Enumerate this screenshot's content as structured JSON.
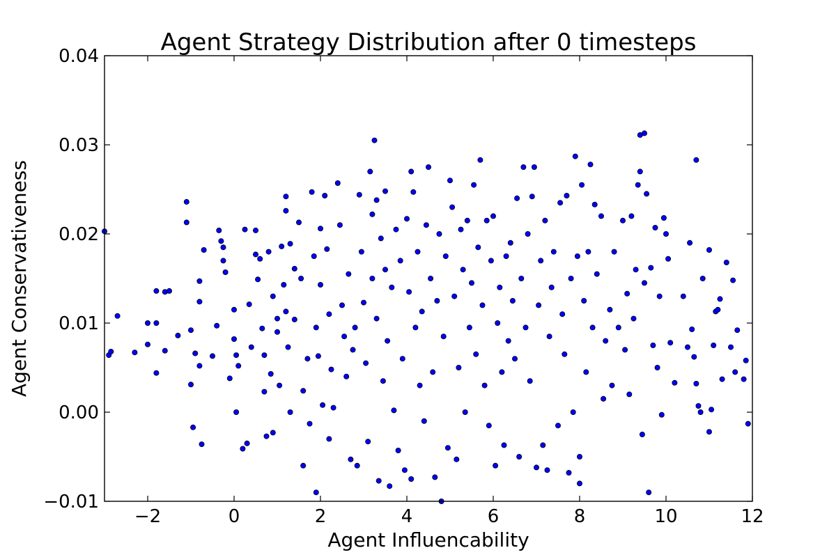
{
  "chart_data": {
    "type": "scatter",
    "title": "Agent Strategy Distribution after 0 timesteps",
    "xlabel": "Agent Influencability",
    "ylabel": "Agent Conservativeness",
    "xlim": [
      -3,
      12
    ],
    "ylim": [
      -0.01,
      0.04
    ],
    "xticks": [
      -2,
      0,
      2,
      4,
      6,
      8,
      10,
      12
    ],
    "yticks": [
      -0.01,
      0.0,
      0.01,
      0.02,
      0.03,
      0.04
    ],
    "xtick_labels": [
      "−2",
      "0",
      "2",
      "4",
      "6",
      "8",
      "10",
      "12"
    ],
    "ytick_labels": [
      "−0.01",
      "0.00",
      "0.01",
      "0.02",
      "0.03",
      "0.04"
    ],
    "grid": false,
    "marker_color": "#0000ff",
    "marker_edge": "#000000",
    "point_count_note": "approx. 1000 agents; points listed are read from the figure",
    "points": [
      [
        -3.0,
        0.0203
      ],
      [
        -2.9,
        0.0064
      ],
      [
        -2.85,
        0.0068
      ],
      [
        -2.7,
        0.0108
      ],
      [
        -2.3,
        0.0067
      ],
      [
        -2.0,
        0.01
      ],
      [
        -2.0,
        0.0076
      ],
      [
        -1.8,
        0.0136
      ],
      [
        -1.8,
        0.01
      ],
      [
        -1.8,
        0.0044
      ],
      [
        -1.6,
        0.0135
      ],
      [
        -1.5,
        0.0136
      ],
      [
        -1.6,
        0.0069
      ],
      [
        -1.3,
        0.0086
      ],
      [
        -1.1,
        0.0236
      ],
      [
        -1.1,
        0.0213
      ],
      [
        -1.0,
        0.0092
      ],
      [
        -1.0,
        0.0031
      ],
      [
        -0.95,
        -0.0017
      ],
      [
        -0.9,
        0.0066
      ],
      [
        -0.8,
        0.0147
      ],
      [
        -0.8,
        0.0124
      ],
      [
        -0.8,
        0.0052
      ],
      [
        -0.75,
        -0.0036
      ],
      [
        -0.7,
        0.0182
      ],
      [
        -0.5,
        0.0063
      ],
      [
        -0.4,
        0.0097
      ],
      [
        -0.35,
        0.0204
      ],
      [
        -0.3,
        0.0192
      ],
      [
        -0.25,
        0.0185
      ],
      [
        -0.25,
        0.017
      ],
      [
        -0.2,
        0.0157
      ],
      [
        -0.1,
        0.0038
      ],
      [
        0.0,
        0.0115
      ],
      [
        0.0,
        0.0082
      ],
      [
        0.05,
        0.0
      ],
      [
        0.05,
        0.0064
      ],
      [
        0.1,
        0.0052
      ],
      [
        0.2,
        -0.0041
      ],
      [
        0.25,
        0.0205
      ],
      [
        0.3,
        -0.0035
      ],
      [
        0.35,
        0.0121
      ],
      [
        0.4,
        0.0073
      ],
      [
        0.5,
        0.0204
      ],
      [
        0.5,
        0.0177
      ],
      [
        0.55,
        0.0149
      ],
      [
        0.6,
        0.0172
      ],
      [
        0.65,
        0.0094
      ],
      [
        0.7,
        0.0064
      ],
      [
        0.7,
        0.0023
      ],
      [
        0.75,
        -0.0027
      ],
      [
        0.8,
        0.018
      ],
      [
        0.85,
        0.0043
      ],
      [
        0.9,
        -0.0023
      ],
      [
        0.9,
        0.013
      ],
      [
        1.0,
        0.0105
      ],
      [
        1.0,
        0.009
      ],
      [
        1.05,
        0.003
      ],
      [
        1.1,
        0.0186
      ],
      [
        1.15,
        0.0143
      ],
      [
        1.2,
        0.0242
      ],
      [
        1.2,
        0.0226
      ],
      [
        1.2,
        0.0113
      ],
      [
        1.25,
        0.0073
      ],
      [
        1.3,
        0.0
      ],
      [
        1.3,
        0.0189
      ],
      [
        1.4,
        0.0161
      ],
      [
        1.4,
        0.0104
      ],
      [
        1.5,
        0.0213
      ],
      [
        1.55,
        0.015
      ],
      [
        1.6,
        -0.006
      ],
      [
        1.6,
        0.0024
      ],
      [
        1.7,
        0.006
      ],
      [
        1.75,
        -0.0013
      ],
      [
        1.8,
        0.0247
      ],
      [
        1.85,
        0.0175
      ],
      [
        1.9,
        -0.009
      ],
      [
        1.9,
        0.0095
      ],
      [
        1.95,
        0.0063
      ],
      [
        2.0,
        0.0206
      ],
      [
        2.0,
        0.0143
      ],
      [
        2.05,
        0.0008
      ],
      [
        2.1,
        0.0243
      ],
      [
        2.15,
        0.0183
      ],
      [
        2.2,
        -0.003
      ],
      [
        2.2,
        0.011
      ],
      [
        2.25,
        0.0048
      ],
      [
        2.3,
        0.0005
      ],
      [
        2.4,
        0.0257
      ],
      [
        2.45,
        0.021
      ],
      [
        2.5,
        0.012
      ],
      [
        2.55,
        0.0085
      ],
      [
        2.6,
        0.004
      ],
      [
        2.65,
        0.0155
      ],
      [
        2.7,
        -0.0053
      ],
      [
        2.75,
        0.007
      ],
      [
        2.8,
        0.0095
      ],
      [
        2.85,
        -0.006
      ],
      [
        2.9,
        0.0244
      ],
      [
        2.95,
        0.018
      ],
      [
        3.0,
        0.0123
      ],
      [
        3.05,
        0.0055
      ],
      [
        3.1,
        -0.0033
      ],
      [
        3.15,
        0.027
      ],
      [
        3.2,
        0.0222
      ],
      [
        3.2,
        0.015
      ],
      [
        3.25,
        0.0305
      ],
      [
        3.3,
        0.0238
      ],
      [
        3.3,
        0.0105
      ],
      [
        3.35,
        -0.0077
      ],
      [
        3.4,
        0.0195
      ],
      [
        3.45,
        0.0035
      ],
      [
        3.5,
        0.0248
      ],
      [
        3.5,
        0.016
      ],
      [
        3.55,
        0.008
      ],
      [
        3.6,
        -0.0083
      ],
      [
        3.65,
        0.014
      ],
      [
        3.7,
        0.0002
      ],
      [
        3.75,
        0.0205
      ],
      [
        3.8,
        -0.0043
      ],
      [
        3.85,
        0.017
      ],
      [
        3.9,
        0.006
      ],
      [
        3.95,
        -0.0065
      ],
      [
        4.0,
        0.0217
      ],
      [
        4.05,
        0.0135
      ],
      [
        4.1,
        -0.0075
      ],
      [
        4.1,
        0.027
      ],
      [
        4.15,
        0.0247
      ],
      [
        4.2,
        0.0095
      ],
      [
        4.25,
        0.018
      ],
      [
        4.3,
        0.003
      ],
      [
        4.35,
        0.0113
      ],
      [
        4.4,
        -0.001
      ],
      [
        4.45,
        0.021
      ],
      [
        4.5,
        0.0275
      ],
      [
        4.55,
        0.015
      ],
      [
        4.6,
        0.0045
      ],
      [
        4.65,
        -0.0073
      ],
      [
        4.7,
        0.0125
      ],
      [
        4.75,
        0.02
      ],
      [
        4.8,
        -0.01
      ],
      [
        4.85,
        0.0085
      ],
      [
        4.9,
        0.0175
      ],
      [
        4.95,
        -0.004
      ],
      [
        5.0,
        0.026
      ],
      [
        5.05,
        0.023
      ],
      [
        5.1,
        0.013
      ],
      [
        5.15,
        -0.0053
      ],
      [
        5.2,
        0.005
      ],
      [
        5.25,
        0.0205
      ],
      [
        5.3,
        0.016
      ],
      [
        5.35,
        0.0
      ],
      [
        5.4,
        0.0215
      ],
      [
        5.45,
        0.0095
      ],
      [
        5.5,
        0.0145
      ],
      [
        5.55,
        0.0255
      ],
      [
        5.6,
        0.0065
      ],
      [
        5.65,
        0.0185
      ],
      [
        5.7,
        0.0283
      ],
      [
        5.75,
        0.012
      ],
      [
        5.8,
        0.003
      ],
      [
        5.85,
        0.0215
      ],
      [
        5.9,
        -0.0015
      ],
      [
        5.95,
        0.017
      ],
      [
        6.0,
        0.022
      ],
      [
        6.05,
        -0.006
      ],
      [
        6.1,
        0.01
      ],
      [
        6.15,
        0.014
      ],
      [
        6.2,
        0.0045
      ],
      [
        6.25,
        -0.0037
      ],
      [
        6.3,
        0.0175
      ],
      [
        6.35,
        0.008
      ],
      [
        6.4,
        0.019
      ],
      [
        6.45,
        0.0125
      ],
      [
        6.5,
        0.006
      ],
      [
        6.55,
        0.024
      ],
      [
        6.6,
        -0.005
      ],
      [
        6.65,
        0.015
      ],
      [
        6.7,
        0.0275
      ],
      [
        6.75,
        0.0095
      ],
      [
        6.8,
        0.02
      ],
      [
        6.85,
        0.0035
      ],
      [
        6.9,
        0.0242
      ],
      [
        6.95,
        0.0275
      ],
      [
        7.0,
        -0.0062
      ],
      [
        7.05,
        0.012
      ],
      [
        7.1,
        0.017
      ],
      [
        7.15,
        -0.0037
      ],
      [
        7.2,
        0.0215
      ],
      [
        7.25,
        -0.0065
      ],
      [
        7.3,
        0.0085
      ],
      [
        7.35,
        0.014
      ],
      [
        7.4,
        0.018
      ],
      [
        7.5,
        -0.0015
      ],
      [
        7.55,
        0.0235
      ],
      [
        7.6,
        0.011
      ],
      [
        7.65,
        0.0065
      ],
      [
        7.7,
        0.0243
      ],
      [
        7.75,
        -0.0068
      ],
      [
        7.8,
        0.015
      ],
      [
        7.85,
        0.0
      ],
      [
        7.9,
        0.0287
      ],
      [
        7.95,
        0.0175
      ],
      [
        8.0,
        -0.008
      ],
      [
        8.0,
        -0.005
      ],
      [
        8.05,
        0.0255
      ],
      [
        8.1,
        0.0125
      ],
      [
        8.15,
        0.0045
      ],
      [
        8.2,
        0.018
      ],
      [
        8.25,
        0.0278
      ],
      [
        8.3,
        0.0095
      ],
      [
        8.35,
        0.0233
      ],
      [
        8.4,
        0.0155
      ],
      [
        8.5,
        0.022
      ],
      [
        8.55,
        0.0015
      ],
      [
        8.6,
        0.008
      ],
      [
        8.7,
        0.0115
      ],
      [
        8.75,
        0.003
      ],
      [
        8.8,
        0.018
      ],
      [
        8.9,
        0.0095
      ],
      [
        9.0,
        0.0215
      ],
      [
        9.05,
        0.007
      ],
      [
        9.1,
        0.0133
      ],
      [
        9.15,
        0.002
      ],
      [
        9.2,
        0.022
      ],
      [
        9.25,
        0.0105
      ],
      [
        9.3,
        0.016
      ],
      [
        9.35,
        0.0255
      ],
      [
        9.4,
        0.027
      ],
      [
        9.4,
        0.0311
      ],
      [
        9.5,
        0.0313
      ],
      [
        9.45,
        -0.0025
      ],
      [
        9.5,
        0.0145
      ],
      [
        9.55,
        0.0245
      ],
      [
        9.6,
        -0.009
      ],
      [
        9.65,
        0.0162
      ],
      [
        9.7,
        0.0075
      ],
      [
        9.75,
        0.0207
      ],
      [
        9.8,
        0.005
      ],
      [
        9.85,
        0.013
      ],
      [
        9.9,
        -0.0003
      ],
      [
        9.95,
        0.0218
      ],
      [
        10.0,
        0.02
      ],
      [
        10.05,
        0.0172
      ],
      [
        10.1,
        0.0078
      ],
      [
        10.2,
        0.0033
      ],
      [
        10.4,
        0.013
      ],
      [
        10.5,
        0.0073
      ],
      [
        10.55,
        0.019
      ],
      [
        10.6,
        0.0093
      ],
      [
        10.65,
        0.0062
      ],
      [
        10.7,
        0.0032
      ],
      [
        10.7,
        0.0283
      ],
      [
        10.75,
        0.0007
      ],
      [
        10.8,
        0.0
      ],
      [
        10.85,
        0.015
      ],
      [
        11.0,
        0.0182
      ],
      [
        11.0,
        -0.0022
      ],
      [
        11.05,
        0.0003
      ],
      [
        11.1,
        0.0075
      ],
      [
        11.15,
        0.0113
      ],
      [
        11.2,
        0.0115
      ],
      [
        11.25,
        0.0127
      ],
      [
        11.3,
        0.0037
      ],
      [
        11.4,
        0.0168
      ],
      [
        11.5,
        0.0073
      ],
      [
        11.55,
        0.0148
      ],
      [
        11.6,
        0.0045
      ],
      [
        11.65,
        0.0092
      ],
      [
        11.8,
        0.0037
      ],
      [
        11.85,
        0.0058
      ],
      [
        11.9,
        -0.0013
      ]
    ]
  }
}
